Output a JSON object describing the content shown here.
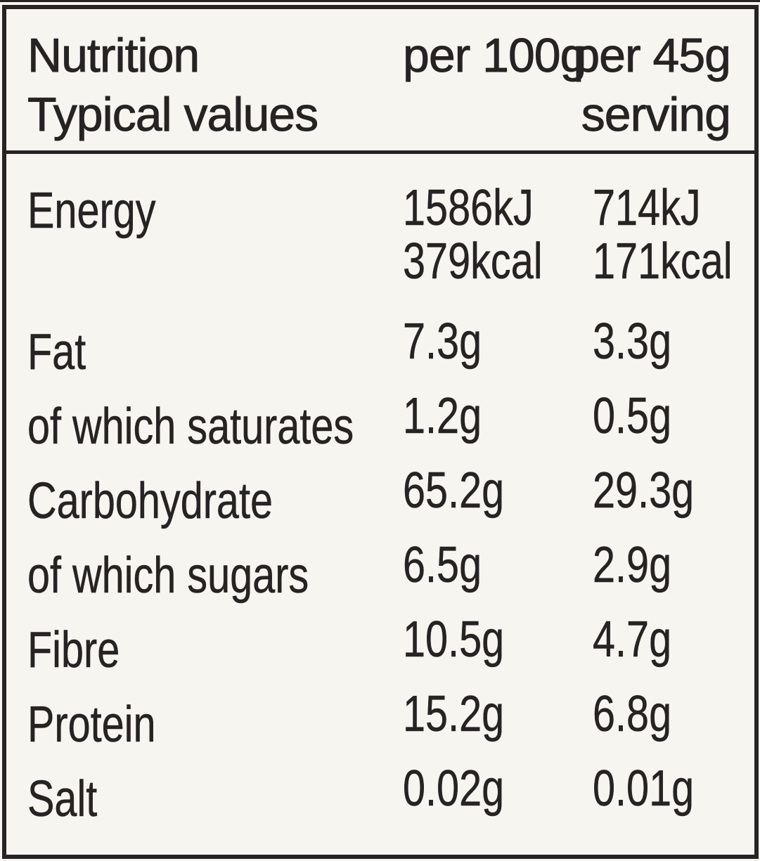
{
  "header": {
    "title": "Nutrition",
    "subtitle": "Typical values",
    "col_per_100g": "per 100g",
    "col_per_45g_line1": "per 45g",
    "col_per_45g_line2": "serving"
  },
  "rows": [
    {
      "label": "Energy",
      "per100": "1586kJ",
      "per100_line2": "379kcal",
      "per45": "714kJ",
      "per45_line2": "171kcal"
    },
    {
      "label": "Fat",
      "per100": "7.3g",
      "per100_line2": "",
      "per45": "3.3g",
      "per45_line2": ""
    },
    {
      "label": "of which saturates",
      "per100": "1.2g",
      "per100_line2": "",
      "per45": "0.5g",
      "per45_line2": ""
    },
    {
      "label": "Carbohydrate",
      "per100": "65.2g",
      "per100_line2": "",
      "per45": "29.3g",
      "per45_line2": ""
    },
    {
      "label": "of which sugars",
      "per100": "6.5g",
      "per100_line2": "",
      "per45": "2.9g",
      "per45_line2": ""
    },
    {
      "label": "Fibre",
      "per100": "10.5g",
      "per100_line2": "",
      "per45": "4.7g",
      "per45_line2": ""
    },
    {
      "label": "Protein",
      "per100": "15.2g",
      "per100_line2": "",
      "per45": "6.8g",
      "per45_line2": ""
    },
    {
      "label": "Salt",
      "per100": "0.02g",
      "per100_line2": "",
      "per45": "0.01g",
      "per45_line2": ""
    }
  ],
  "colors": {
    "background": "#f7f5f0",
    "ink": "#272324",
    "border": "#272324"
  }
}
